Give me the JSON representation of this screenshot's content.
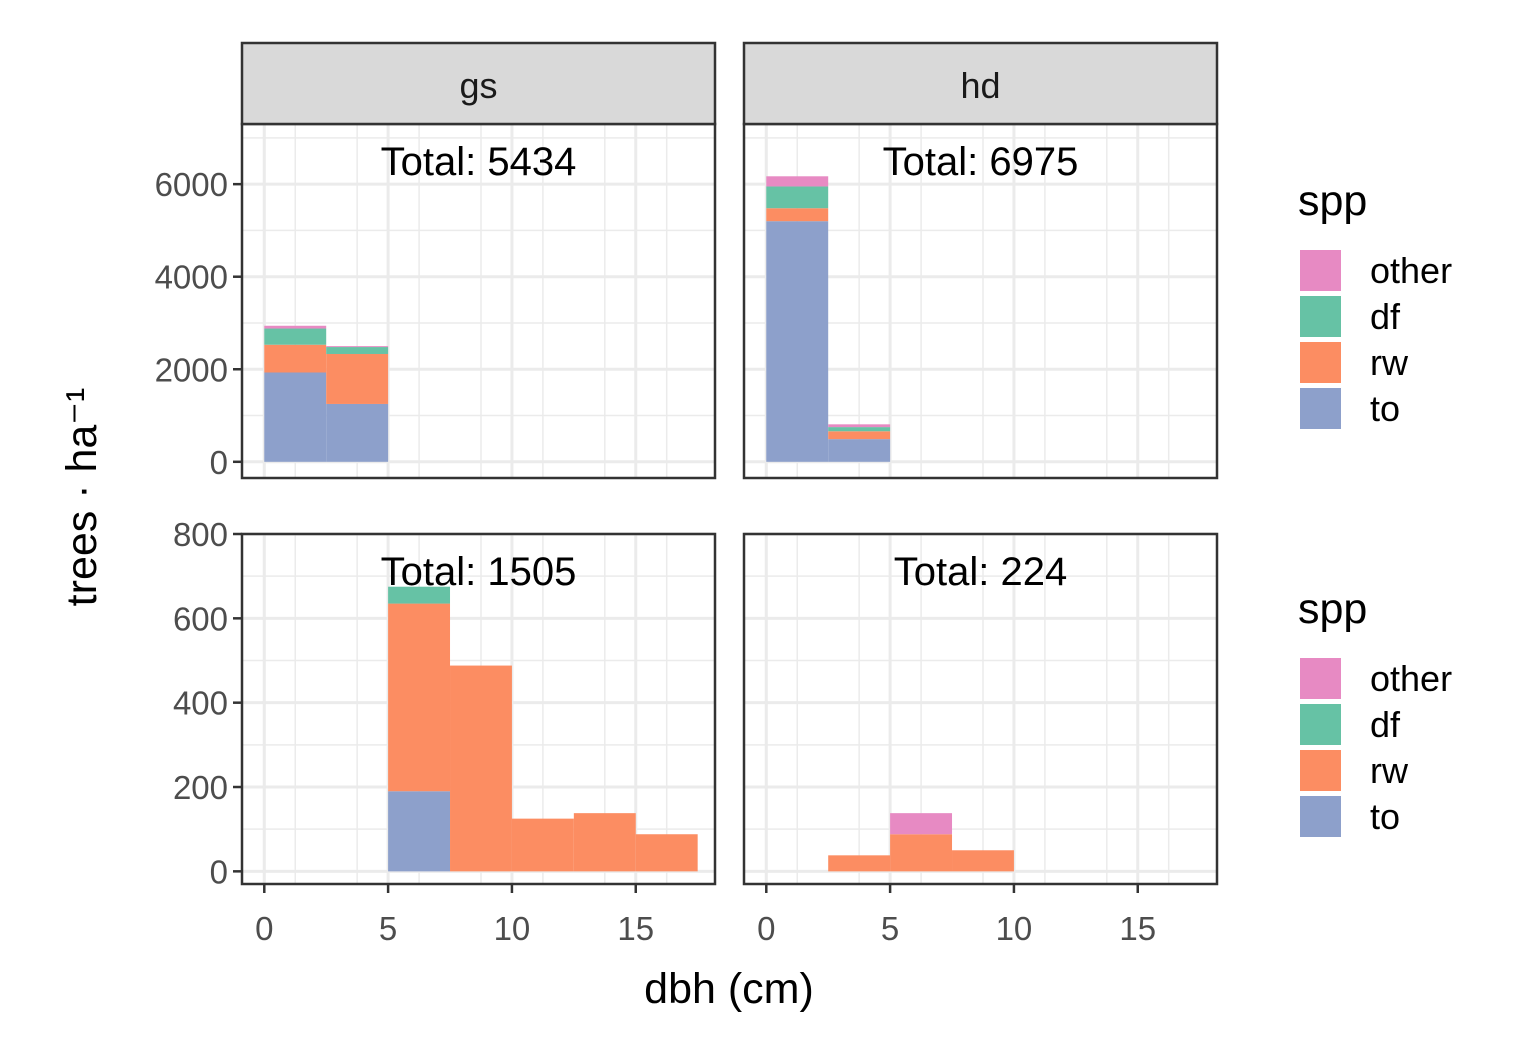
{
  "chart_data": {
    "type": "bar",
    "stacked": true,
    "xlabel": "dbh (cm)",
    "ylabel": "trees · ha⁻¹",
    "facet_columns": [
      "gs",
      "hd"
    ],
    "legend": {
      "title": "spp",
      "placement": "right",
      "entries": [
        "other",
        "df",
        "rw",
        "to"
      ]
    },
    "colors": {
      "other": "#E78AC3",
      "df": "#66C2A5",
      "rw": "#FC8D62",
      "to": "#8DA0CB",
      "strip_bg": "#d9d9d9",
      "panel_border": "#333333",
      "grid": "#ebebeb"
    },
    "x_ticks": [
      "0",
      "5",
      "10",
      "15"
    ],
    "xlim": [
      -0.9,
      18.2
    ],
    "bin_width": 2.5,
    "rows": [
      {
        "ylim": [
          -350,
          7300
        ],
        "y_ticks": [
          0,
          2000,
          4000,
          6000
        ],
        "y_tick_labels": [
          "0",
          "2000",
          "4000",
          "6000"
        ],
        "panels": [
          {
            "facet": "gs",
            "annotation": "Total:  5434",
            "bins": [
              {
                "x0": 0,
                "x1": 2.5,
                "to": 1930,
                "rw": 600,
                "df": 350,
                "other": 60
              },
              {
                "x0": 2.5,
                "x1": 5,
                "to": 1250,
                "rw": 1080,
                "df": 150,
                "other": 20
              }
            ]
          },
          {
            "facet": "hd",
            "annotation": "Total:  6975",
            "bins": [
              {
                "x0": 0,
                "x1": 2.5,
                "to": 5200,
                "rw": 280,
                "df": 470,
                "other": 220
              },
              {
                "x0": 2.5,
                "x1": 5,
                "to": 490,
                "rw": 170,
                "df": 90,
                "other": 60
              }
            ]
          }
        ]
      },
      {
        "ylim": [
          -30,
          800
        ],
        "y_ticks": [
          0,
          200,
          400,
          600,
          800
        ],
        "y_tick_labels": [
          "0",
          "200",
          "400",
          "600",
          "800"
        ],
        "panels": [
          {
            "facet": "gs",
            "annotation": "Total:  1505",
            "bins": [
              {
                "x0": 5,
                "x1": 7.5,
                "to": 190,
                "rw": 445,
                "df": 40,
                "other": 0
              },
              {
                "x0": 7.5,
                "x1": 10,
                "to": 0,
                "rw": 488,
                "df": 0,
                "other": 0
              },
              {
                "x0": 10,
                "x1": 12.5,
                "to": 0,
                "rw": 125,
                "df": 0,
                "other": 0
              },
              {
                "x0": 12.5,
                "x1": 15,
                "to": 0,
                "rw": 138,
                "df": 0,
                "other": 0
              },
              {
                "x0": 15,
                "x1": 17.5,
                "to": 0,
                "rw": 88,
                "df": 0,
                "other": 0
              }
            ]
          },
          {
            "facet": "hd",
            "annotation": "Total:  224",
            "bins": [
              {
                "x0": 2.5,
                "x1": 5,
                "to": 0,
                "rw": 38,
                "df": 0,
                "other": 0
              },
              {
                "x0": 5,
                "x1": 7.5,
                "to": 0,
                "rw": 88,
                "df": 0,
                "other": 50
              },
              {
                "x0": 7.5,
                "x1": 10,
                "to": 0,
                "rw": 50,
                "df": 0,
                "other": 0
              }
            ]
          }
        ]
      }
    ]
  }
}
